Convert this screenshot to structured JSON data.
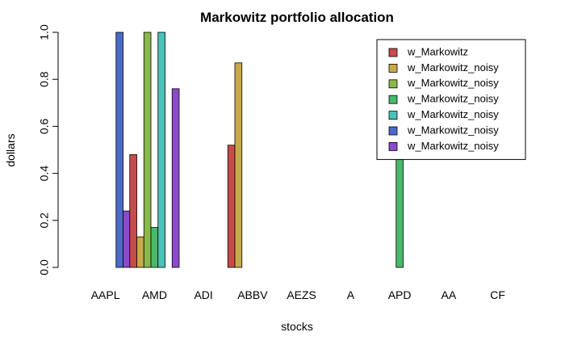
{
  "chart_data": {
    "type": "bar",
    "title": "Markowitz portfolio allocation",
    "xlabel": "stocks",
    "ylabel": "dollars",
    "ylim": [
      0,
      1
    ],
    "yticks": [
      "0.0",
      "0.2",
      "0.4",
      "0.6",
      "0.8",
      "1.0"
    ],
    "legend_position": "top-right",
    "categories": [
      "AAPL",
      "AMD",
      "ADI",
      "ABBV",
      "AEZS",
      "A",
      "APD",
      "AA",
      "CF"
    ],
    "series": [
      {
        "name": "w_Markowitz",
        "color": "#c94a4a",
        "values": [
          0,
          0.48,
          0,
          0.52,
          0,
          0,
          0,
          0,
          0
        ]
      },
      {
        "name": "w_Markowitz_noisy",
        "color": "#c9a94a",
        "values": [
          0,
          0.13,
          0,
          0.87,
          0,
          0,
          0,
          0,
          0
        ]
      },
      {
        "name": "w_Markowitz_noisy",
        "color": "#8ab84a",
        "values": [
          0,
          1.0,
          0,
          0,
          0,
          0,
          0,
          0,
          0
        ]
      },
      {
        "name": "w_Markowitz_noisy",
        "color": "#4ab86a",
        "values": [
          0,
          0.17,
          0,
          0,
          0,
          0,
          0.83,
          0,
          0
        ]
      },
      {
        "name": "w_Markowitz_noisy",
        "color": "#4ac2b8",
        "values": [
          0,
          1.0,
          0,
          0,
          0,
          0,
          0,
          0,
          0
        ]
      },
      {
        "name": "w_Markowitz_noisy",
        "color": "#4a6ac9",
        "values": [
          1.0,
          0,
          0,
          0,
          0,
          0,
          0,
          0,
          0
        ]
      },
      {
        "name": "w_Markowitz_noisy",
        "color": "#8a4ac9",
        "values": [
          0.24,
          0.76,
          0,
          0,
          0,
          0,
          0,
          0,
          0
        ]
      }
    ]
  }
}
